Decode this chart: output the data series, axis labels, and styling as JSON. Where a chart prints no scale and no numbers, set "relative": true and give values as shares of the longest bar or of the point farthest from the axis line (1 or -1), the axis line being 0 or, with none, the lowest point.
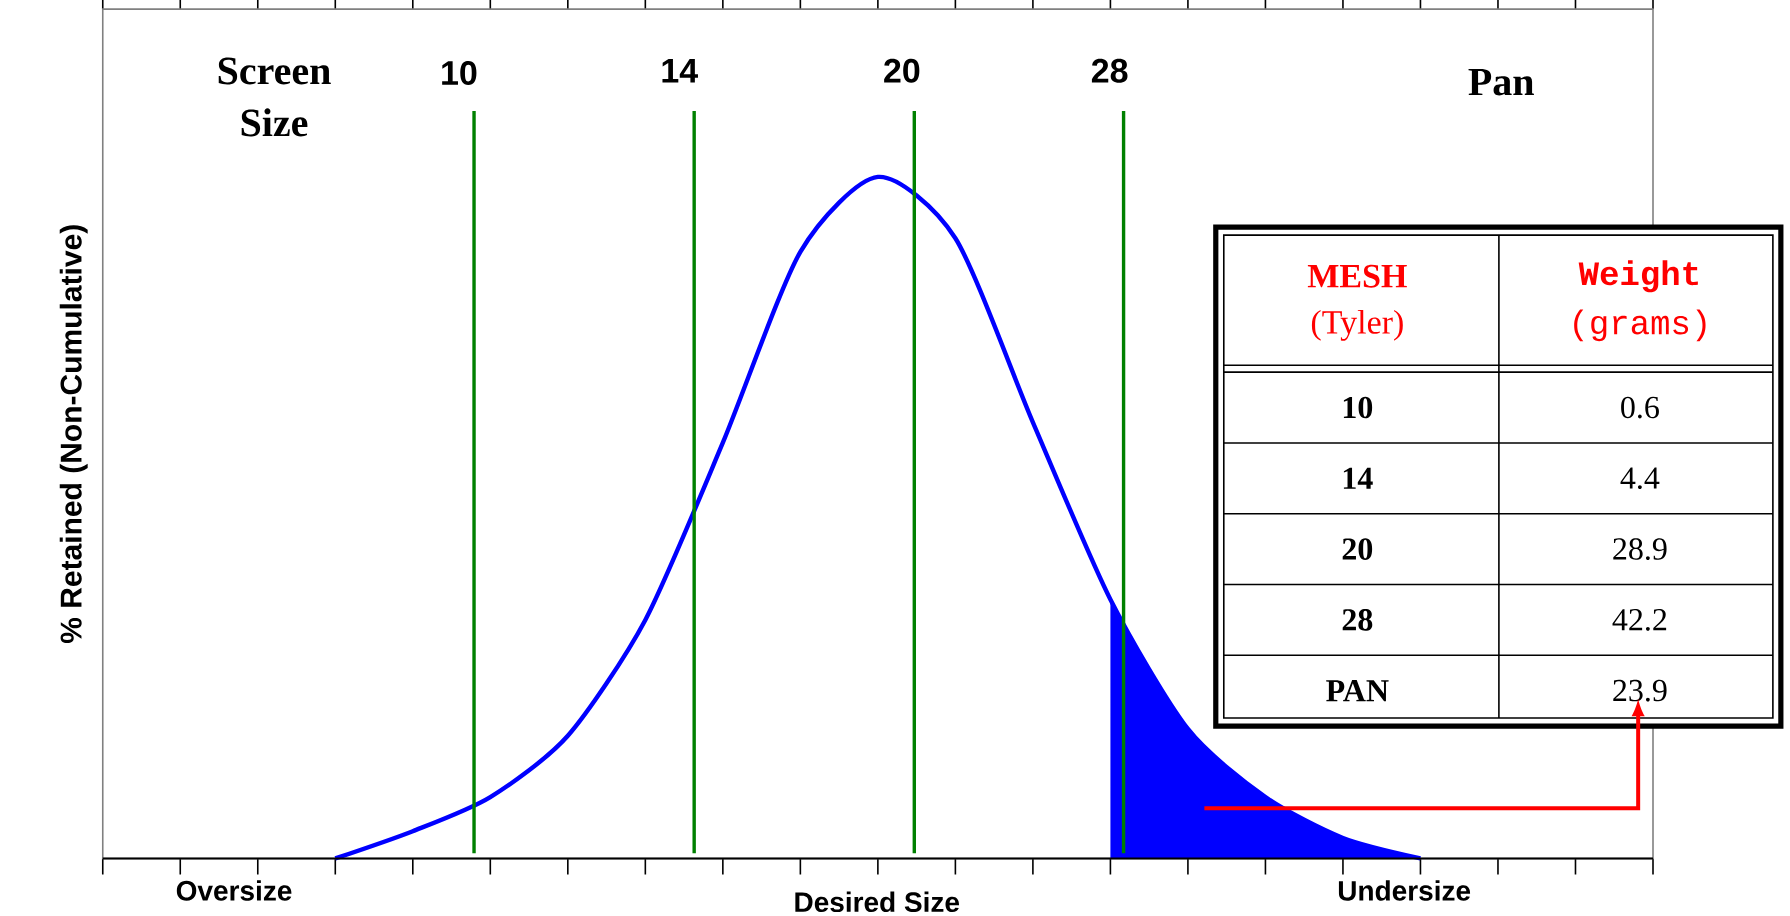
{
  "chart_data": [
    {
      "type": "line",
      "relative": true,
      "ylabel": "% Retained (Non-Cumulative)",
      "categories": [
        null,
        null,
        null,
        null,
        null,
        null,
        null,
        null,
        null,
        null,
        null,
        null,
        null,
        null,
        null,
        null,
        null,
        null,
        null,
        null,
        null
      ],
      "annotations": [
        "Screen Size",
        "Pan",
        "Oversize",
        "Undersize",
        "Desired Size",
        "10",
        "14",
        "20",
        "28"
      ],
      "series": [
        {
          "color": "#0000ff",
          "values": [
            null,
            null,
            null,
            0,
            0.04,
            0.09,
            0.18,
            0.35,
            0.61,
            0.89,
            1,
            0.91,
            0.64,
            0.38,
            0.19,
            0.09,
            0.03,
            0,
            null,
            null,
            null
          ]
        },
        {
          "type": "area",
          "color": "#0000ff",
          "values": [
            null,
            null,
            null,
            null,
            null,
            null,
            null,
            null,
            null,
            null,
            null,
            null,
            null,
            0.38,
            0.19,
            0.09,
            0.03,
            0,
            null,
            null,
            null
          ]
        }
      ]
    },
    {
      "type": "other",
      "categories": [
        "10",
        "14",
        "20",
        "28",
        "PAN"
      ],
      "values": [
        0.6,
        4.4,
        28.9,
        42.2,
        23.9
      ],
      "data_labels": true,
      "annotations": [
        "MESH",
        "(Tyler)",
        "Weight",
        "(grams)"
      ]
    }
  ]
}
